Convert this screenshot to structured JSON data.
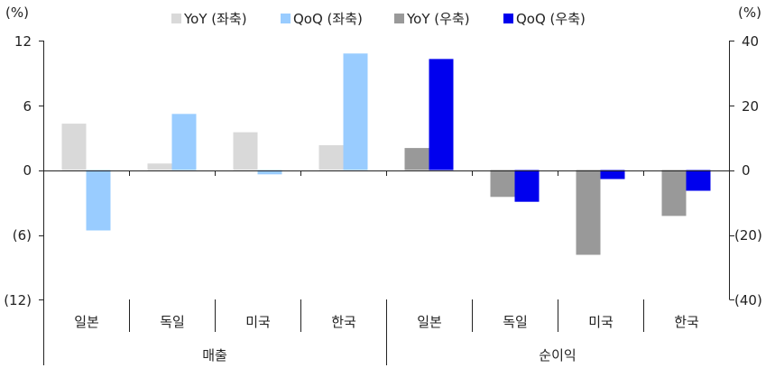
{
  "chart_data": {
    "type": "bar",
    "left_axis": {
      "unit": "(%)",
      "ylim": [
        -12,
        12
      ],
      "ticks": [
        "(12)",
        "(6)",
        "0",
        "6",
        "12"
      ]
    },
    "right_axis": {
      "unit": "(%)",
      "ylim": [
        -40,
        40
      ],
      "ticks": [
        "(40)",
        "(20)",
        "0",
        "20",
        "40"
      ]
    },
    "legend": [
      {
        "name": "YoY (좌축)",
        "color": "#d9d9d9"
      },
      {
        "name": "QoQ (좌축)",
        "color": "#99ccff"
      },
      {
        "name": "YoY (우축)",
        "color": "#999999"
      },
      {
        "name": "QoQ (우축)",
        "color": "#0000ee"
      }
    ],
    "groups": [
      {
        "label": "매출",
        "axis": "left",
        "categories": [
          "일본",
          "독일",
          "미국",
          "한국"
        ],
        "series": [
          {
            "name": "YoY (좌축)",
            "color": "#d9d9d9",
            "values": [
              4.3,
              0.6,
              3.5,
              2.3
            ]
          },
          {
            "name": "QoQ (좌축)",
            "color": "#99ccff",
            "values": [
              -5.6,
              5.2,
              -0.4,
              10.8
            ]
          }
        ]
      },
      {
        "label": "순이익",
        "axis": "right",
        "categories": [
          "일본",
          "독일",
          "미국",
          "한국"
        ],
        "series": [
          {
            "name": "YoY (우축)",
            "color": "#999999",
            "values": [
              6.8,
              -8.3,
              -26.2,
              -14.2
            ]
          },
          {
            "name": "QoQ (우축)",
            "color": "#0000ee",
            "values": [
              34.3,
              -9.8,
              -2.8,
              -6.4
            ]
          }
        ]
      }
    ]
  }
}
